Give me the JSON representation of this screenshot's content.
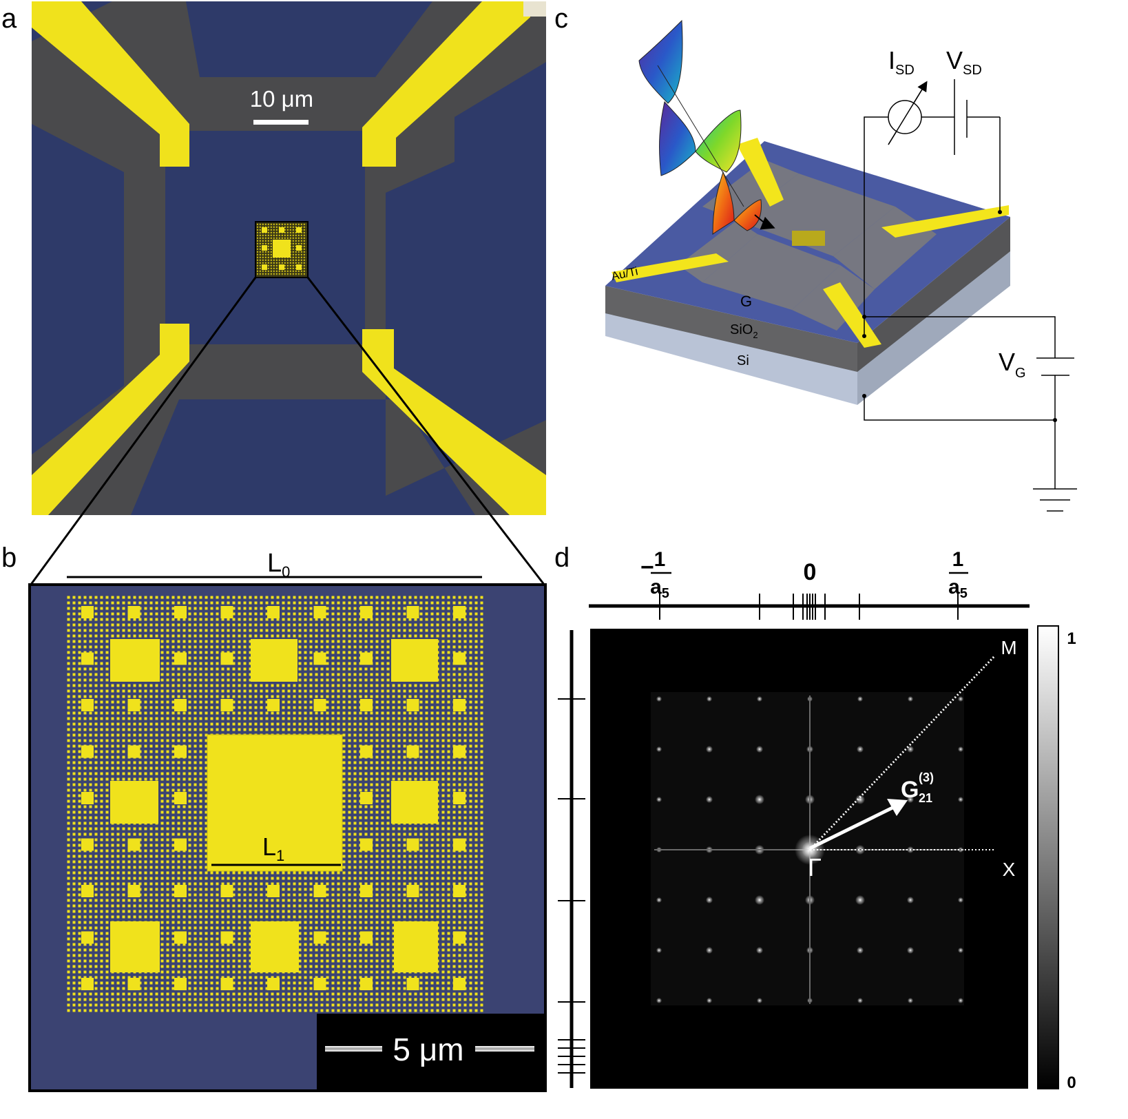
{
  "panels": {
    "a": {
      "letter": "a",
      "scale_bar_text": "10 μm",
      "colors": {
        "substrate": "#2e3a69",
        "graphene": "#4a4a4c",
        "gold": "#f0e21c"
      }
    },
    "b": {
      "letter": "b",
      "l0_label": "L",
      "l0_sub": "0",
      "l1_label": "L",
      "l1_sub": "1",
      "scale_bar_text": "5 μm"
    },
    "c": {
      "letter": "c",
      "isd_label": "I",
      "isd_sub": "SD",
      "vsd_label": "V",
      "vsd_sub": "SD",
      "vg_label": "V",
      "vg_sub": "G",
      "layer_auti": "Au/Ti",
      "layer_g": "G",
      "layer_sio2": "SiO",
      "layer_sio2_sub": "2",
      "layer_si": "Si"
    },
    "d": {
      "letter": "d",
      "tick_neg_minus": "−",
      "tick_neg_num": "1",
      "tick_neg_den": "a",
      "tick_neg_den_sub": "5",
      "tick_zero": "0",
      "tick_pos_num": "1",
      "tick_pos_den": "a",
      "tick_pos_den_sub": "5",
      "point_m": "M",
      "point_x": "X",
      "point_gamma": "Γ",
      "vector_g": "G",
      "vector_sup": "(3)",
      "vector_sub": "21",
      "colorbar_max": "1",
      "colorbar_min": "0"
    }
  }
}
